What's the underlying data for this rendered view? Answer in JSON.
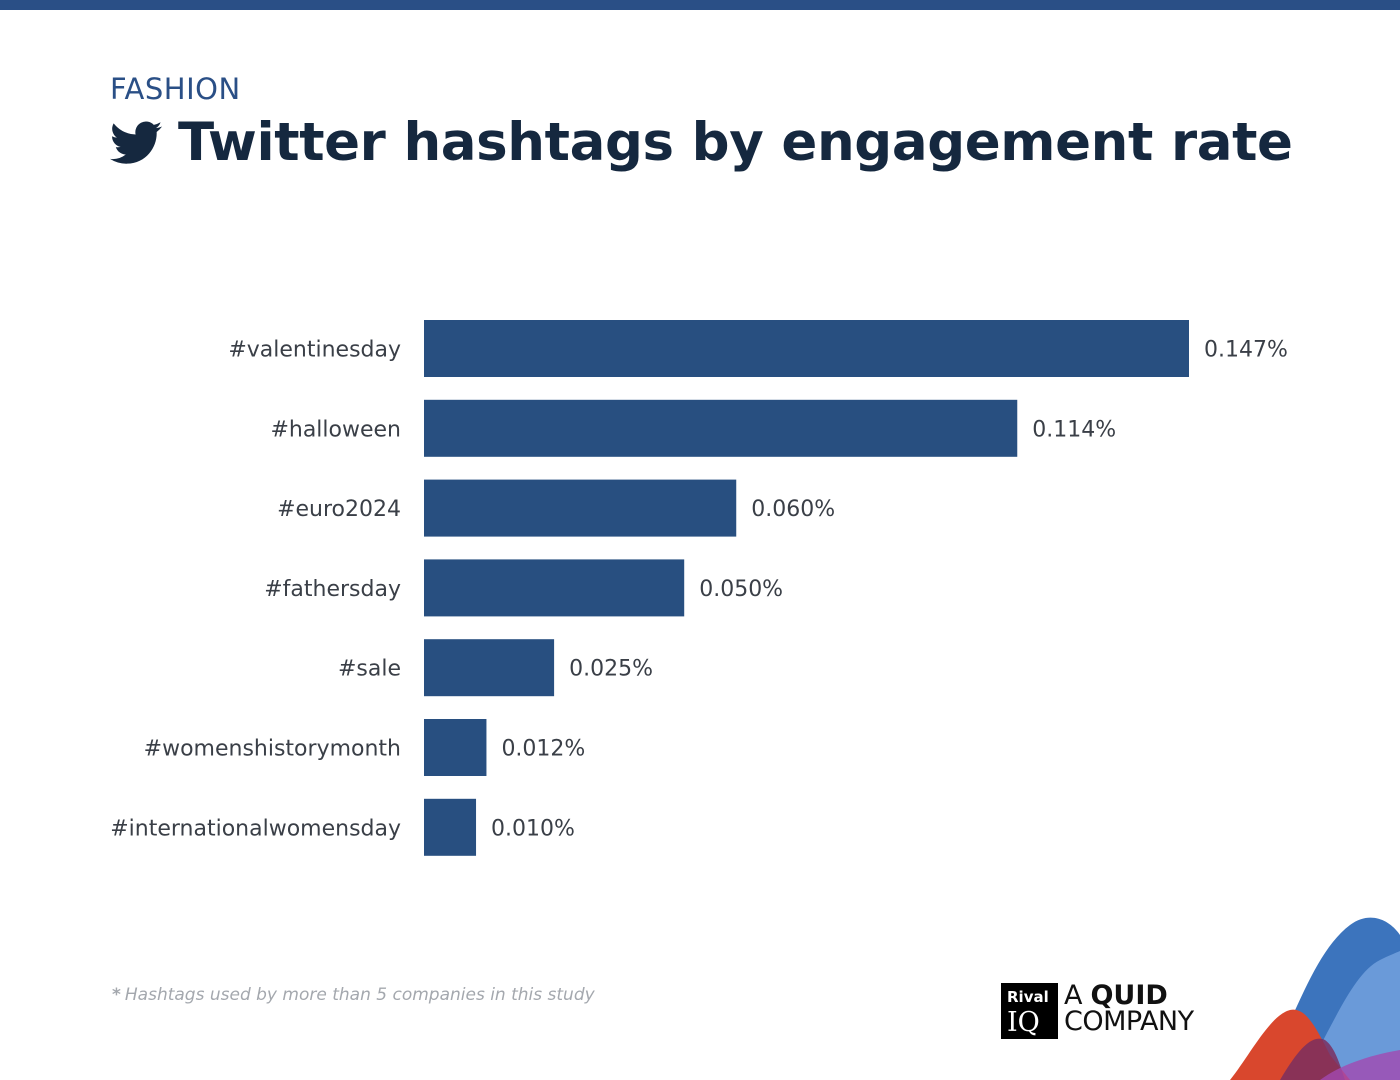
{
  "header": {
    "category": "FASHION",
    "title": "Twitter hashtags by engagement rate",
    "icon": "twitter-bird-icon"
  },
  "colors": {
    "bar": "#284f80",
    "top_bar": "#2a4f86",
    "title": "#15283f"
  },
  "chart_data": {
    "type": "bar",
    "orientation": "horizontal",
    "categories": [
      "#valentinesday",
      "#halloween",
      "#euro2024",
      "#fathersday",
      "#sale",
      "#womenshistorymonth",
      "#internationalwomensday"
    ],
    "values": [
      0.147,
      0.114,
      0.06,
      0.05,
      0.025,
      0.012,
      0.01
    ],
    "value_labels": [
      "0.147%",
      "0.114%",
      "0.060%",
      "0.050%",
      "0.025%",
      "0.012%",
      "0.010%"
    ],
    "unit": "%",
    "title": "Twitter hashtags by engagement rate",
    "xlabel": "",
    "ylabel": "",
    "grid": false,
    "legend": false
  },
  "footnote": {
    "star": "*",
    "text": "Hashtags used by more than 5 companies in this study"
  },
  "brand": {
    "logo_line1": "Rival",
    "logo_line2": "IQ",
    "tagline_a": "A",
    "tagline_quid": "QUID",
    "tagline_company": "COMPANY"
  }
}
